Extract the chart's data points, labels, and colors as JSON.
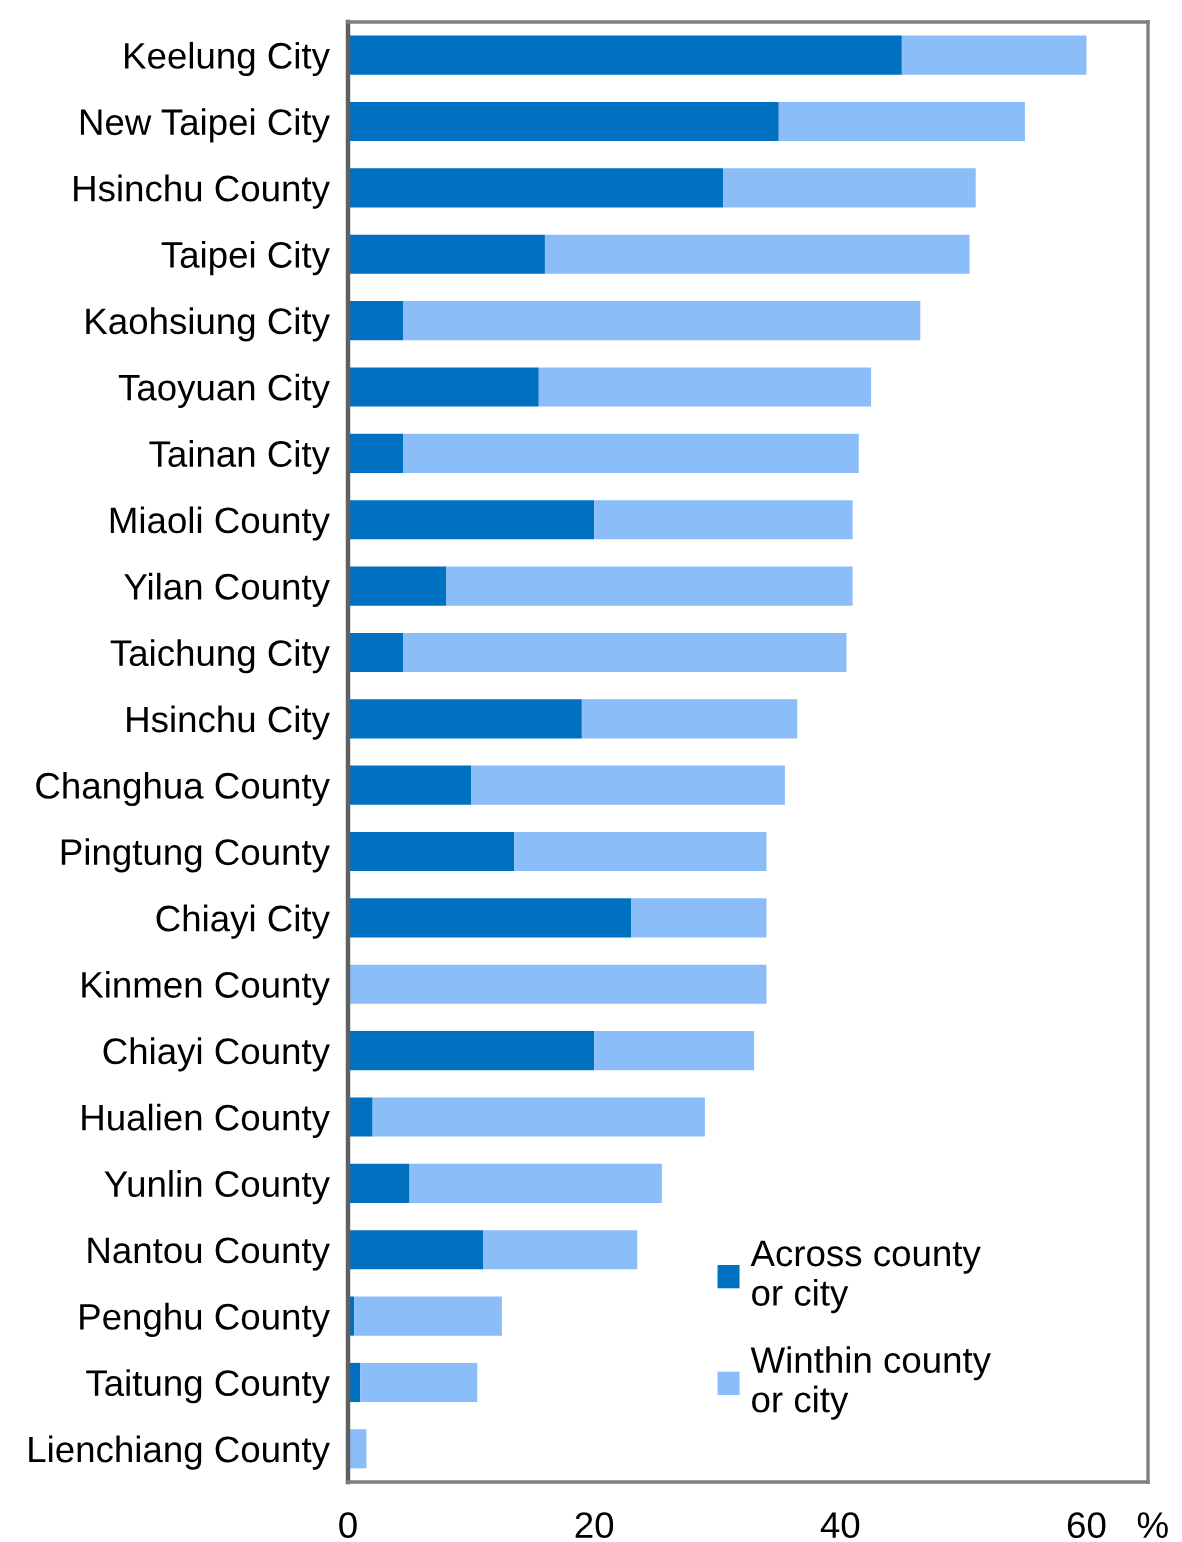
{
  "chart_data": {
    "type": "bar",
    "orientation": "horizontal",
    "stacked": true,
    "categories": [
      "Keelung City",
      "New Taipei City",
      "Hsinchu County",
      "Taipei City",
      "Kaohsiung City",
      "Taoyuan City",
      "Tainan City",
      "Miaoli County",
      "Yilan County",
      "Taichung City",
      "Hsinchu City",
      "Changhua County",
      "Pingtung County",
      "Chiayi City",
      "Kinmen County",
      "Chiayi County",
      "Hualien County",
      "Yunlin County",
      "Nantou County",
      "Penghu County",
      "Taitung County",
      "Lienchiang County"
    ],
    "series": [
      {
        "name": "Across county\nor city",
        "color": "#0070c0",
        "values": [
          45,
          35,
          30.5,
          16,
          4.5,
          15.5,
          4.5,
          20,
          8,
          4.5,
          19,
          10,
          13.5,
          23,
          0,
          20,
          2,
          5,
          11,
          0.5,
          1,
          0
        ]
      },
      {
        "name": "Winthin county\nor city",
        "color": "#8bbdf8",
        "values": [
          15,
          20,
          20.5,
          34.5,
          42,
          27,
          37,
          21,
          33,
          36,
          17.5,
          25.5,
          20.5,
          11,
          34,
          13,
          27,
          20.5,
          12.5,
          12,
          9.5,
          1.5
        ]
      }
    ],
    "xlabel": "%",
    "xlim": [
      0,
      65
    ],
    "xticks": [
      0,
      20,
      40,
      60
    ],
    "legend": "bottom right"
  }
}
